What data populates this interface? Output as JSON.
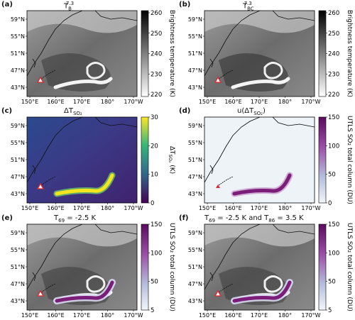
{
  "figure": {
    "panels": [
      {
        "label": "(a)",
        "title_main": "T",
        "title_sub": "B",
        "title_sup": "7.3",
        "type": "grey",
        "colorbar": {
          "label": "Brightness temperature (K)",
          "ticks": [
            "260",
            "250",
            "240",
            "230",
            "220"
          ]
        },
        "lat_ticks": [
          "59°N",
          "55°N",
          "51°N",
          "47°N",
          "43°N"
        ],
        "lon_ticks": [
          "150°E",
          "160°E",
          "170°E",
          "180°",
          "170°W"
        ]
      },
      {
        "label": "(b)",
        "title_main": "T",
        "title_sub": "BC",
        "title_sup": "7.3",
        "type": "grey",
        "colorbar": {
          "label": "Brightness temperature (K)",
          "ticks": [
            "260",
            "250",
            "240",
            "230",
            "220"
          ]
        },
        "lat_ticks": [
          "59°N",
          "55°N",
          "51°N",
          "47°N",
          "43°N"
        ],
        "lon_ticks": [
          "150°E",
          "160°E",
          "170°E",
          "180°",
          "170°W"
        ]
      },
      {
        "label": "(c)",
        "title_main": "ΔT",
        "title_sub": "SO₂",
        "title_sup": "",
        "type": "viridis",
        "colorbar": {
          "label": "ΔT",
          "label_sub": "SO₂",
          "label_unit": " (K)",
          "ticks": [
            "30",
            "20",
            "10",
            "0"
          ]
        },
        "lat_ticks": [
          "59°N",
          "55°N",
          "51°N",
          "47°N",
          "43°N"
        ],
        "lon_ticks": [
          "150°E",
          "160°E",
          "170°E",
          "180°",
          "170°W"
        ]
      },
      {
        "label": "(d)",
        "title_main": "u(ΔT",
        "title_sub": "SO₂",
        "title_after": ")",
        "type": "white",
        "colorbar": {
          "label": "UTLS SO₂ total column (DU)",
          "ticks": [
            "150",
            "100",
            "50",
            "0"
          ]
        },
        "lat_ticks": [
          "59°N",
          "55°N",
          "51°N",
          "47°N",
          "43°N"
        ],
        "lon_ticks": [
          "150°E",
          "160°E",
          "170°E",
          "180°",
          "170°W"
        ]
      },
      {
        "label": "(e)",
        "title_main": "T",
        "title_sub": "69",
        "title_after": " = -2.5 K",
        "type": "grey-so2",
        "colorbar": {
          "label": "UTLS SO₂ total column (DU)",
          "ticks": [
            "150",
            "100",
            "50",
            "5"
          ]
        },
        "lat_ticks": [
          "59°N",
          "55°N",
          "51°N",
          "47°N",
          "43°N"
        ],
        "lon_ticks": [
          "150°E",
          "160°E",
          "170°E",
          "180°",
          "170°W"
        ]
      },
      {
        "label": "(f)",
        "title_main": "T",
        "title_sub": "69",
        "title_after": " = -2.5 K and T",
        "title_sub2": "86",
        "title_after2": " = 3.5 K",
        "type": "grey-so2",
        "colorbar": {
          "label": "UTLS SO₂ total column (DU)",
          "ticks": [
            "150",
            "100",
            "50",
            "5"
          ]
        },
        "lat_ticks": [
          "59°N",
          "55°N",
          "51°N",
          "47°N",
          "43°N"
        ],
        "lon_ticks": [
          "150°E",
          "160°E",
          "170°E",
          "180°",
          "170°W"
        ]
      }
    ],
    "colors": {
      "plume_viridis": "#f3e51e",
      "plume_purple": "#7b1e7a",
      "volcano_marker": "#e0282e",
      "coastline": "#000000"
    }
  }
}
